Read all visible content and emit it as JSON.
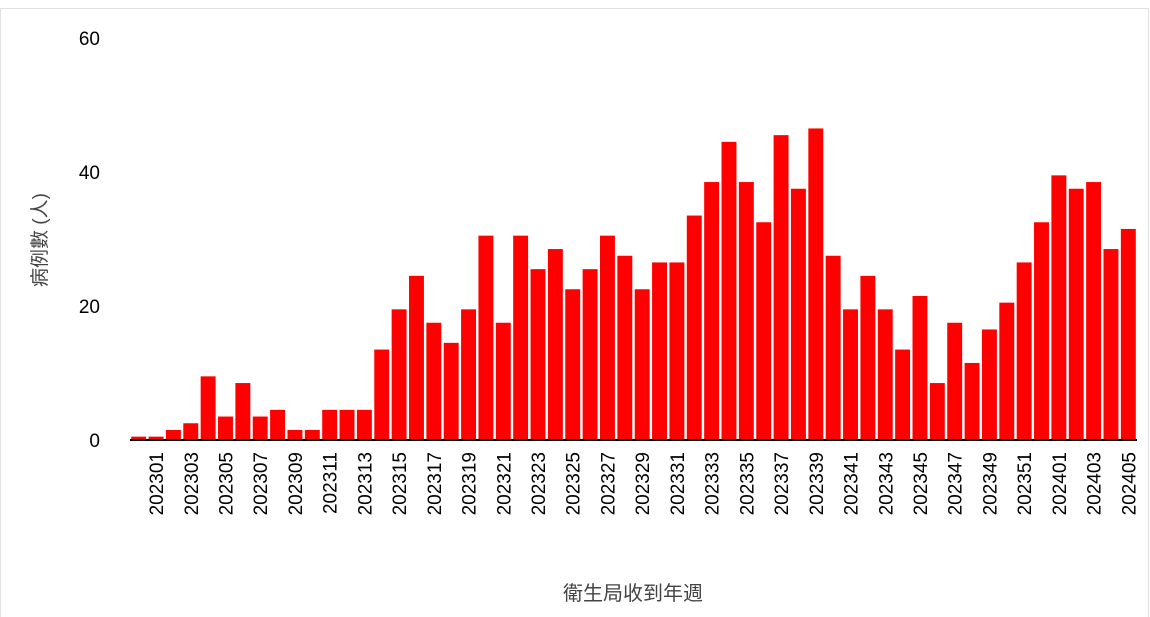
{
  "chart_data": {
    "type": "bar",
    "x_label": "衛生局收到年週",
    "y_label": "病例數 (人)",
    "categories": [
      null,
      "202301",
      null,
      "202303",
      null,
      "202305",
      null,
      "202307",
      null,
      "202309",
      null,
      "202311",
      null,
      "202313",
      null,
      "202315",
      null,
      "202317",
      null,
      "202319",
      null,
      "202321",
      null,
      "202323",
      null,
      "202325",
      null,
      "202327",
      null,
      "202329",
      null,
      "202331",
      null,
      "202333",
      null,
      "202335",
      null,
      "202337",
      null,
      "202339",
      null,
      "202341",
      null,
      "202343",
      null,
      "202345",
      null,
      "202347",
      null,
      "202349",
      null,
      "202351",
      null,
      "202401",
      null,
      "202403",
      null,
      "202405"
    ],
    "values": [
      0.5,
      0.5,
      1.5,
      2.5,
      9.5,
      3.5,
      8.5,
      3.5,
      4.5,
      1.5,
      1.5,
      4.5,
      4.5,
      4.5,
      13.5,
      19.5,
      24.5,
      17.5,
      14.5,
      19.5,
      30.5,
      17.5,
      30.5,
      25.5,
      28.5,
      22.5,
      25.5,
      30.5,
      27.5,
      22.5,
      26.5,
      26.5,
      33.5,
      38.5,
      44.5,
      38.5,
      32.5,
      45.5,
      37.5,
      46.5,
      27.5,
      19.5,
      24.5,
      19.5,
      13.5,
      21.5,
      8.5,
      17.5,
      11.5,
      16.5,
      20.5,
      26.5,
      32.5,
      39.5,
      37.5,
      38.5,
      28.5,
      31.5
    ],
    "color": "#ff0000",
    "ylim": [
      0,
      60
    ],
    "yticks": [
      0,
      20,
      40,
      60
    ],
    "grid": false
  }
}
